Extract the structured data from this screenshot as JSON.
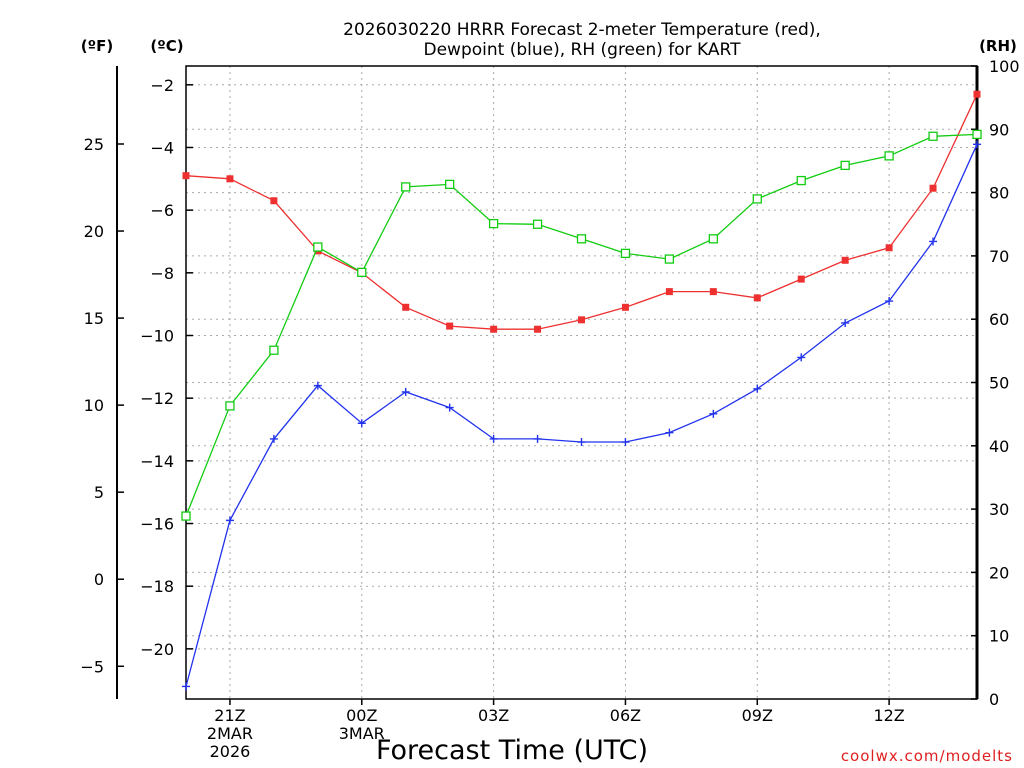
{
  "chart_data": {
    "type": "line",
    "title": [
      "2026030220 HRRR Forecast 2-meter Temperature (red),",
      "Dewpoint (blue), RH (green) for KART"
    ],
    "xlabel": "Forecast Time (UTC)",
    "ylabel_left_c": "(ºC)",
    "ylabel_left_f": "(ºF)",
    "ylabel_right": "(RH)",
    "credit": "coolwx.com/modelts",
    "x_hours": [
      20,
      21,
      22,
      23,
      24,
      25,
      26,
      27,
      28,
      29,
      30,
      31,
      32,
      33,
      34,
      35,
      36,
      37,
      38
    ],
    "xlim": [
      20,
      38
    ],
    "x_ticks": [
      {
        "hour": 21,
        "lines": [
          "21Z",
          "2MAR",
          "2026"
        ]
      },
      {
        "hour": 24,
        "lines": [
          "00Z",
          "3MAR"
        ]
      },
      {
        "hour": 27,
        "lines": [
          "03Z"
        ]
      },
      {
        "hour": 30,
        "lines": [
          "06Z"
        ]
      },
      {
        "hour": 33,
        "lines": [
          "09Z"
        ]
      },
      {
        "hour": 36,
        "lines": [
          "12Z"
        ]
      }
    ],
    "ylim_c": [
      -21.6,
      -1.4
    ],
    "yticks_c": [
      -2,
      -4,
      -6,
      -8,
      -10,
      -12,
      -14,
      -16,
      -18,
      -20
    ],
    "yticks_f": [
      25,
      20,
      15,
      10,
      5,
      0,
      -5
    ],
    "ylim_rh": [
      0,
      100
    ],
    "yticks_rh": [
      0,
      10,
      20,
      30,
      40,
      50,
      60,
      70,
      80,
      90,
      100
    ],
    "series": [
      {
        "name": "Temperature",
        "axis": "c",
        "color": "#ee3030",
        "marker": "filled-square",
        "values": [
          -4.9,
          -5.0,
          -5.7,
          -7.3,
          -8.0,
          -9.1,
          -9.7,
          -9.8,
          -9.8,
          -9.5,
          -9.1,
          -8.6,
          -8.6,
          -8.8,
          -8.2,
          -7.6,
          -7.2,
          -5.3,
          -2.3
        ]
      },
      {
        "name": "Dewpoint",
        "axis": "c",
        "color": "#2233ee",
        "marker": "plus",
        "values": [
          -21.2,
          -15.9,
          -13.3,
          -11.6,
          -12.8,
          -11.8,
          -12.3,
          -13.3,
          -13.3,
          -13.4,
          -13.4,
          -13.1,
          -12.5,
          -11.7,
          -10.7,
          -9.6,
          -8.9,
          -7.0,
          -3.9
        ]
      },
      {
        "name": "RH",
        "axis": "rh",
        "color": "#11cc11",
        "marker": "open-square",
        "values": [
          28.9,
          46.3,
          55.1,
          71.4,
          67.4,
          80.9,
          81.3,
          75.1,
          75.0,
          72.7,
          70.4,
          69.5,
          72.7,
          79.0,
          81.9,
          84.3,
          85.8,
          88.9,
          89.2
        ]
      }
    ]
  }
}
